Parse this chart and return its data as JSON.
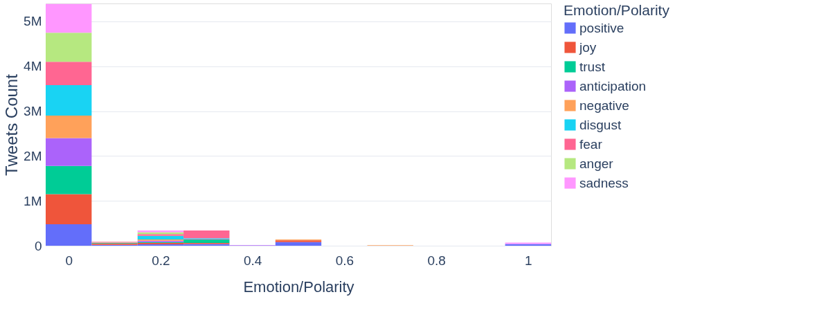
{
  "chart_data": {
    "type": "bar",
    "stacked": true,
    "xlabel": "Emotion/Polarity",
    "ylabel": "Tweets Count",
    "legend_title": "Emotion/Polarity",
    "legend": "right",
    "grid": "y",
    "x": [
      0,
      0.1,
      0.2,
      0.3,
      0.4,
      0.5,
      0.6,
      0.7,
      0.8,
      0.9,
      1
    ],
    "xlim": [
      -0.05,
      1.05
    ],
    "xticks": [
      0,
      0.2,
      0.4,
      0.6,
      0.8,
      1
    ],
    "ylim": [
      0,
      5400000
    ],
    "yticks": [
      0,
      {
        "value": 1000000,
        "label": "1M"
      },
      {
        "value": 2000000,
        "label": "2M"
      },
      {
        "value": 3000000,
        "label": "3M"
      },
      {
        "value": 4000000,
        "label": "4M"
      },
      {
        "value": 5000000,
        "label": "5M"
      }
    ],
    "series": [
      {
        "name": "positive",
        "color": "#636efa",
        "values": [
          480000,
          20000,
          30000,
          40000,
          0,
          80000,
          0,
          0,
          0,
          0,
          40000
        ]
      },
      {
        "name": "joy",
        "color": "#ef553b",
        "values": [
          670000,
          30000,
          30000,
          20000,
          0,
          40000,
          0,
          0,
          0,
          0,
          0
        ]
      },
      {
        "name": "trust",
        "color": "#00cc96",
        "values": [
          630000,
          10000,
          20000,
          80000,
          0,
          0,
          0,
          0,
          0,
          0,
          0
        ]
      },
      {
        "name": "anticipation",
        "color": "#ab63fa",
        "values": [
          620000,
          10000,
          30000,
          10000,
          10000,
          0,
          0,
          0,
          0,
          0,
          0
        ]
      },
      {
        "name": "negative",
        "color": "#ffa15a",
        "values": [
          500000,
          10000,
          30000,
          10000,
          0,
          20000,
          0,
          10000,
          0,
          0,
          0
        ]
      },
      {
        "name": "disgust",
        "color": "#19d3f3",
        "values": [
          680000,
          0,
          80000,
          10000,
          0,
          0,
          0,
          0,
          0,
          0,
          0
        ]
      },
      {
        "name": "fear",
        "color": "#ff6692",
        "values": [
          520000,
          10000,
          40000,
          170000,
          0,
          0,
          0,
          0,
          0,
          0,
          0
        ]
      },
      {
        "name": "anger",
        "color": "#b6e880",
        "values": [
          650000,
          0,
          40000,
          0,
          0,
          0,
          0,
          0,
          0,
          0,
          0
        ]
      },
      {
        "name": "sadness",
        "color": "#ff97ff",
        "values": [
          640000,
          0,
          40000,
          0,
          0,
          0,
          0,
          0,
          0,
          0,
          30000
        ]
      }
    ]
  }
}
